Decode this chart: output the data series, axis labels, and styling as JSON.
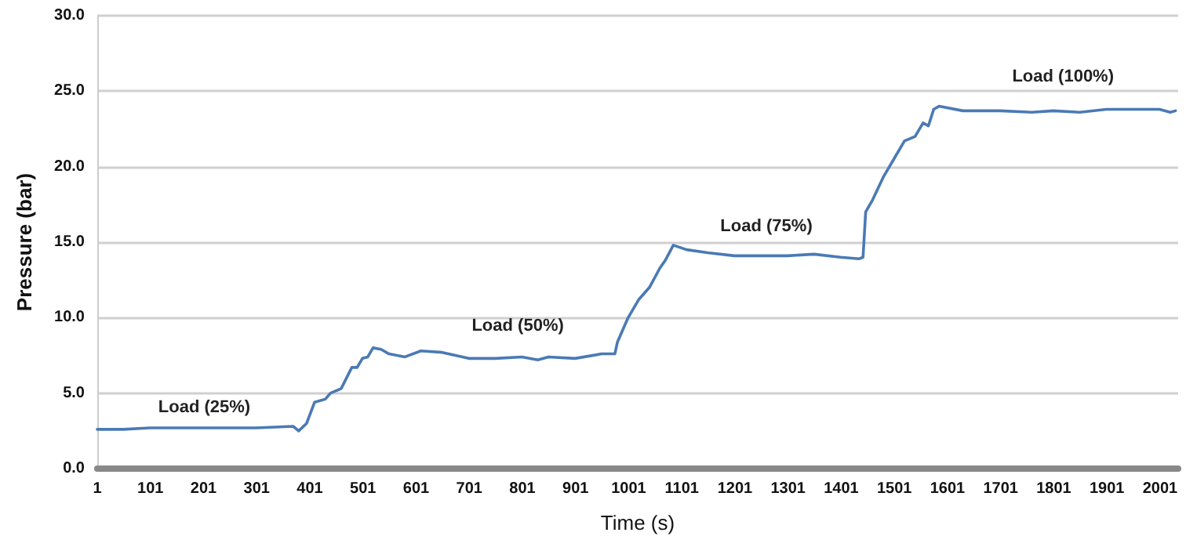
{
  "chart_data": {
    "type": "line",
    "xlabel": "Time (s)",
    "ylabel": "Pressure (bar)",
    "x": [
      1,
      50,
      100,
      200,
      300,
      370,
      380,
      395,
      410,
      430,
      440,
      460,
      470,
      480,
      490,
      500,
      510,
      520,
      535,
      550,
      580,
      610,
      650,
      700,
      750,
      800,
      830,
      850,
      900,
      950,
      975,
      980,
      1000,
      1020,
      1040,
      1060,
      1070,
      1085,
      1110,
      1150,
      1200,
      1300,
      1350,
      1400,
      1435,
      1442,
      1447,
      1460,
      1480,
      1500,
      1520,
      1540,
      1555,
      1565,
      1575,
      1585,
      1630,
      1700,
      1760,
      1800,
      1850,
      1900,
      2000,
      2020,
      2030
    ],
    "series": [
      {
        "color": "#4a7ab5",
        "values": [
          2.6,
          2.6,
          2.7,
          2.7,
          2.7,
          2.8,
          2.5,
          3.0,
          4.4,
          4.6,
          5.0,
          5.3,
          6.0,
          6.7,
          6.7,
          7.3,
          7.4,
          8.0,
          7.9,
          7.6,
          7.4,
          7.8,
          7.7,
          7.3,
          7.3,
          7.4,
          7.2,
          7.4,
          7.3,
          7.6,
          7.6,
          8.4,
          10.0,
          11.2,
          12.0,
          13.3,
          13.8,
          14.8,
          14.5,
          14.3,
          14.1,
          14.1,
          14.2,
          14.0,
          13.9,
          14.0,
          17.0,
          17.8,
          19.3,
          20.5,
          21.7,
          22.0,
          22.9,
          22.7,
          23.8,
          24.0,
          23.7,
          23.7,
          23.6,
          23.7,
          23.6,
          23.8,
          23.8,
          23.6,
          23.7
        ]
      }
    ],
    "xlim": [
      1,
      2035
    ],
    "xticks": [
      1,
      101,
      201,
      301,
      401,
      501,
      601,
      701,
      801,
      901,
      1001,
      1101,
      1201,
      1301,
      1401,
      1501,
      1601,
      1701,
      1801,
      1901,
      2001
    ],
    "ylim": [
      0,
      30
    ],
    "yticks": [
      {
        "value": 0,
        "label": "0.0"
      },
      {
        "value": 5,
        "label": "5.0"
      },
      {
        "value": 10,
        "label": "10.0"
      },
      {
        "value": 15,
        "label": "15.0"
      },
      {
        "value": 20,
        "label": "20.0"
      },
      {
        "value": 25,
        "label": "25.0"
      },
      {
        "value": 30,
        "label": "30.0"
      }
    ],
    "grid": "y",
    "marker": "none",
    "line_style": "solid",
    "annotations": [
      "Load (25%)",
      "Load (50%)",
      "Load (75%)",
      "Load (100%)"
    ]
  }
}
